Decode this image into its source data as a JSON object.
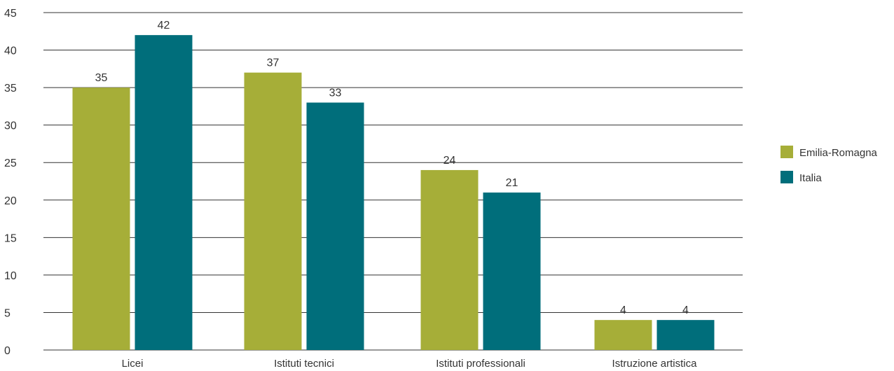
{
  "chart_data": {
    "type": "bar",
    "categories": [
      "Licei",
      "Istituti tecnici",
      "Istituti professionali",
      "Istruzione artistica"
    ],
    "series": [
      {
        "name": "Emilia-Romagna",
        "values": [
          35,
          37,
          24,
          4
        ],
        "color": "#a6ae38"
      },
      {
        "name": "Italia",
        "values": [
          42,
          33,
          21,
          4
        ],
        "color": "#006e7b"
      }
    ],
    "ylim": [
      0,
      45
    ],
    "yticks": [
      0,
      5,
      10,
      15,
      20,
      25,
      30,
      35,
      40,
      45
    ],
    "grid": true,
    "legend_position": "right"
  }
}
